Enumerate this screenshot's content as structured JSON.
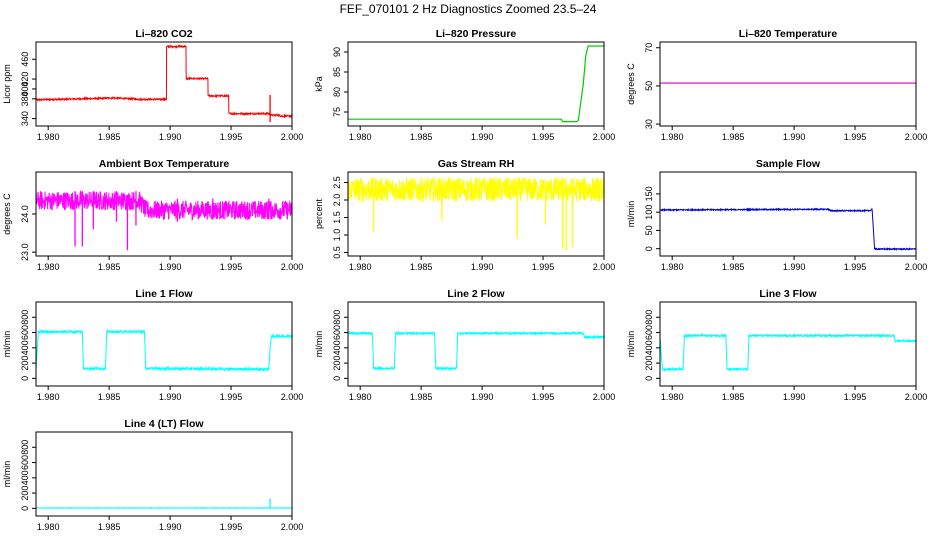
{
  "page": {
    "title": "FEF_070101  2 Hz Diagnostics Zoomed 23.5–24"
  },
  "chart_data": [
    {
      "type": "line",
      "title": "Li–820 CO2",
      "xlabel": "",
      "ylabel": "Licor ppm",
      "color": "#ff0000",
      "xlim": [
        1.979,
        2.0
      ],
      "ylim": [
        325,
        495
      ],
      "xticks": [
        1.98,
        1.985,
        1.99,
        1.995,
        2.0
      ],
      "xtick_labels": [
        "1.980",
        "1.985",
        "1.990",
        "1.995",
        "2.000"
      ],
      "yticks": [
        340,
        380,
        400,
        420,
        460
      ],
      "ytick_labels": [
        "340",
        "380",
        "400",
        "420",
        "460"
      ],
      "noise": 1.5,
      "x": [
        1.979,
        1.9845,
        1.9852,
        1.9875,
        1.9897,
        1.9897,
        1.9913,
        1.9913,
        1.9931,
        1.9931,
        1.9948,
        1.9948,
        1.9982,
        1.9982,
        1.999,
        1.999,
        2.0
      ],
      "y": [
        378,
        381,
        382,
        379,
        379,
        486,
        486,
        421,
        421,
        386,
        386,
        350,
        350,
        347,
        347,
        345,
        345
      ],
      "spikes": [
        {
          "x": 1.9982,
          "lo": 333,
          "hi": 388
        }
      ]
    },
    {
      "type": "line",
      "title": "Li–820 Pressure",
      "xlabel": "",
      "ylabel": "kPa",
      "color": "#00cc00",
      "xlim": [
        1.979,
        2.0
      ],
      "ylim": [
        71.5,
        92.5
      ],
      "xticks": [
        1.98,
        1.985,
        1.99,
        1.995,
        2.0
      ],
      "xtick_labels": [
        "1.980",
        "1.985",
        "1.990",
        "1.995",
        "2.000"
      ],
      "yticks": [
        75,
        80,
        85,
        90
      ],
      "ytick_labels": [
        "75",
        "80",
        "85",
        "90"
      ],
      "noise": 0,
      "x": [
        1.979,
        1.9965,
        1.9966,
        1.9978,
        1.9979,
        1.9983,
        1.9985,
        1.9987,
        2.0
      ],
      "y": [
        73.2,
        73.2,
        72.6,
        72.6,
        73.0,
        82.0,
        89.0,
        91.5,
        91.5
      ]
    },
    {
      "type": "line",
      "title": "Li–820 Temperature",
      "xlabel": "",
      "ylabel": "degrees C",
      "color": "#cc00cc",
      "xlim": [
        1.979,
        2.0
      ],
      "ylim": [
        29,
        73
      ],
      "xticks": [
        1.98,
        1.985,
        1.99,
        1.995,
        2.0
      ],
      "xtick_labels": [
        "1.980",
        "1.985",
        "1.990",
        "1.995",
        "2.000"
      ],
      "yticks": [
        30,
        50,
        70
      ],
      "ytick_labels": [
        "30",
        "50",
        "70"
      ],
      "noise": 0,
      "x": [
        1.979,
        2.0
      ],
      "y": [
        51.5,
        51.5
      ]
    },
    {
      "type": "line",
      "title": "Ambient Box Temperature",
      "xlabel": "",
      "ylabel": "degrees C",
      "color": "#ff00ff",
      "xlim": [
        1.979,
        2.0
      ],
      "ylim": [
        22.9,
        25.1
      ],
      "xticks": [
        1.98,
        1.985,
        1.99,
        1.995,
        2.0
      ],
      "xtick_labels": [
        "1.980",
        "1.985",
        "1.990",
        "1.995",
        "2.000"
      ],
      "yticks": [
        23.0,
        24.0
      ],
      "ytick_labels": [
        "23.0",
        "24.0"
      ],
      "noise": 0.25,
      "x": [
        1.979,
        1.9875,
        1.988,
        2.0
      ],
      "y": [
        24.35,
        24.35,
        24.1,
        24.1
      ],
      "spikes": [
        {
          "x": 1.9822,
          "lo": 23.15,
          "hi": 24.6
        },
        {
          "x": 1.9828,
          "lo": 23.15,
          "hi": 24.6
        },
        {
          "x": 1.9865,
          "lo": 23.05,
          "hi": 24.5
        },
        {
          "x": 1.9837,
          "lo": 23.6,
          "hi": 24.6
        },
        {
          "x": 1.9856,
          "lo": 23.8,
          "hi": 24.6
        },
        {
          "x": 1.9872,
          "lo": 23.7,
          "hi": 24.6
        },
        {
          "x": 1.9906,
          "lo": 23.8,
          "hi": 24.4
        },
        {
          "x": 1.9935,
          "lo": 23.85,
          "hi": 24.4
        },
        {
          "x": 1.9981,
          "lo": 23.85,
          "hi": 24.4
        }
      ]
    },
    {
      "type": "line",
      "title": "Gas Stream RH",
      "xlabel": "",
      "ylabel": "percent",
      "color": "#ffff00",
      "xlim": [
        1.979,
        2.0
      ],
      "ylim": [
        0.4,
        2.8
      ],
      "xticks": [
        1.98,
        1.985,
        1.99,
        1.995,
        2.0
      ],
      "xtick_labels": [
        "1.980",
        "1.985",
        "1.990",
        "1.995",
        "2.000"
      ],
      "yticks": [
        0.5,
        1.0,
        1.5,
        2.0,
        2.5
      ],
      "ytick_labels": [
        "0.5",
        "1.0",
        "1.5",
        "2.0",
        "2.5"
      ],
      "noise": 0.35,
      "x": [
        1.979,
        2.0
      ],
      "y": [
        2.3,
        2.3
      ],
      "spikes": [
        {
          "x": 1.9811,
          "lo": 1.1,
          "hi": 2.3
        },
        {
          "x": 1.9867,
          "lo": 1.4,
          "hi": 2.3
        },
        {
          "x": 1.9929,
          "lo": 0.9,
          "hi": 2.3
        },
        {
          "x": 1.9966,
          "lo": 0.6,
          "hi": 2.3
        },
        {
          "x": 1.9969,
          "lo": 0.55,
          "hi": 2.3
        },
        {
          "x": 1.9974,
          "lo": 0.65,
          "hi": 2.3
        },
        {
          "x": 1.9952,
          "lo": 1.3,
          "hi": 2.3
        }
      ]
    },
    {
      "type": "line",
      "title": "Sample Flow",
      "xlabel": "",
      "ylabel": "ml/min",
      "color": "#0000cc",
      "xlim": [
        1.979,
        2.0
      ],
      "ylim": [
        -20,
        210
      ],
      "xticks": [
        1.98,
        1.985,
        1.99,
        1.995,
        2.0
      ],
      "xtick_labels": [
        "1.980",
        "1.985",
        "1.990",
        "1.995",
        "2.000"
      ],
      "yticks": [
        0,
        50,
        100,
        150
      ],
      "ytick_labels": [
        "0",
        "50",
        "100",
        "150"
      ],
      "noise": 1.5,
      "x": [
        1.979,
        1.9928,
        1.993,
        1.9962,
        1.9964,
        1.9966,
        1.9968,
        2.0
      ],
      "y": [
        106,
        108,
        104,
        104,
        108,
        0,
        -1,
        -1
      ]
    },
    {
      "type": "line",
      "title": "Line 1 Flow",
      "xlabel": "",
      "ylabel": "ml/min",
      "color": "#00ffff",
      "xlim": [
        1.979,
        2.0
      ],
      "ylim": [
        -100,
        1000
      ],
      "xticks": [
        1.98,
        1.985,
        1.99,
        1.995,
        2.0
      ],
      "xtick_labels": [
        "1.980",
        "1.985",
        "1.990",
        "1.995",
        "2.000"
      ],
      "yticks": [
        0,
        200,
        400,
        600,
        800
      ],
      "ytick_labels": [
        "0",
        "200",
        "400",
        "600",
        "800"
      ],
      "noise": 15,
      "x": [
        1.979,
        1.9792,
        1.9828,
        1.9829,
        1.9847,
        1.9848,
        1.9879,
        1.988,
        1.9981,
        1.9982,
        1.9983,
        2.0
      ],
      "y": [
        130,
        610,
        610,
        130,
        130,
        610,
        610,
        130,
        120,
        400,
        550,
        550
      ]
    },
    {
      "type": "line",
      "title": "Line 2 Flow",
      "xlabel": "",
      "ylabel": "ml/min",
      "color": "#00ffff",
      "xlim": [
        1.979,
        2.0
      ],
      "ylim": [
        -100,
        1000
      ],
      "xticks": [
        1.98,
        1.985,
        1.99,
        1.995,
        2.0
      ],
      "xtick_labels": [
        "1.980",
        "1.985",
        "1.990",
        "1.995",
        "2.000"
      ],
      "yticks": [
        0,
        200,
        400,
        600,
        800
      ],
      "ytick_labels": [
        "0",
        "200",
        "400",
        "600",
        "800"
      ],
      "noise": 12,
      "x": [
        1.979,
        1.981,
        1.9811,
        1.9828,
        1.9829,
        1.9861,
        1.9862,
        1.9879,
        1.988,
        1.9983,
        1.9984,
        2.0
      ],
      "y": [
        590,
        590,
        130,
        130,
        590,
        590,
        130,
        130,
        590,
        590,
        540,
        540
      ]
    },
    {
      "type": "line",
      "title": "Line 3 Flow",
      "xlabel": "",
      "ylabel": "ml/min",
      "color": "#00ffff",
      "xlim": [
        1.979,
        2.0
      ],
      "ylim": [
        -100,
        1000
      ],
      "xticks": [
        1.98,
        1.985,
        1.99,
        1.995,
        2.0
      ],
      "xtick_labels": [
        "1.980",
        "1.985",
        "1.990",
        "1.995",
        "2.000"
      ],
      "yticks": [
        0,
        200,
        400,
        600,
        800
      ],
      "ytick_labels": [
        "0",
        "200",
        "400",
        "600",
        "800"
      ],
      "noise": 12,
      "x": [
        1.979,
        1.9792,
        1.9793,
        1.9809,
        1.981,
        1.9844,
        1.9845,
        1.9862,
        1.9863,
        1.9982,
        1.9983,
        2.0
      ],
      "y": [
        540,
        120,
        120,
        120,
        560,
        560,
        120,
        120,
        560,
        560,
        490,
        490
      ]
    },
    {
      "type": "line",
      "title": "Line 4 (LT) Flow",
      "xlabel": "",
      "ylabel": "ml/min",
      "color": "#00ffff",
      "xlim": [
        1.979,
        2.0
      ],
      "ylim": [
        -100,
        1000
      ],
      "xticks": [
        1.98,
        1.985,
        1.99,
        1.995,
        2.0
      ],
      "xtick_labels": [
        "1.980",
        "1.985",
        "1.990",
        "1.995",
        "2.000"
      ],
      "yticks": [
        0,
        200,
        400,
        600,
        800
      ],
      "ytick_labels": [
        "0",
        "200",
        "400",
        "600",
        "800"
      ],
      "noise": 3,
      "x": [
        1.979,
        2.0
      ],
      "y": [
        5,
        5
      ],
      "spikes": [
        {
          "x": 1.9982,
          "lo": 0,
          "hi": 130
        }
      ]
    }
  ]
}
